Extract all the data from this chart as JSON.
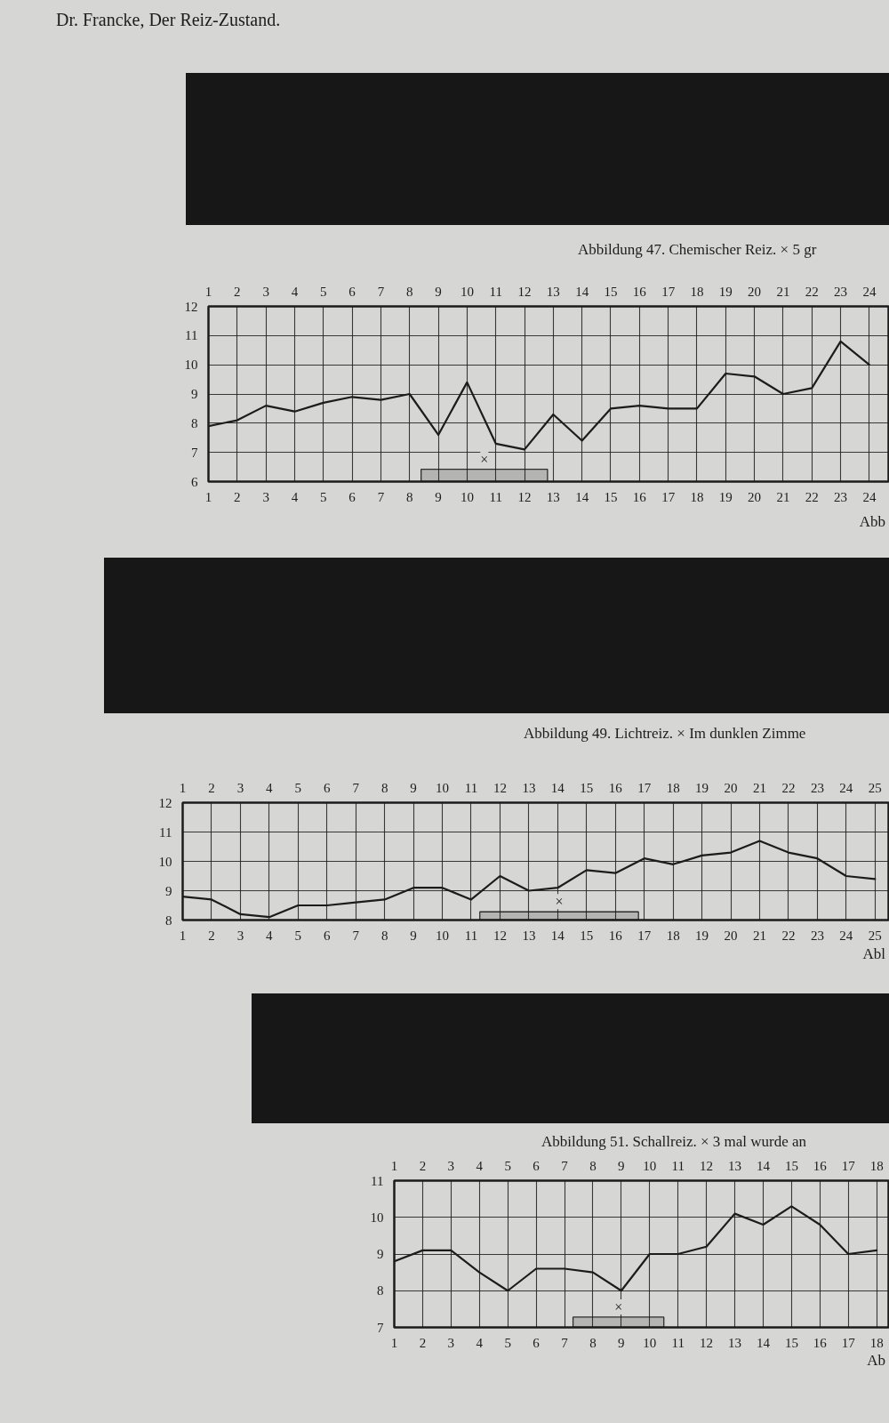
{
  "chart_data": [
    {
      "type": "line",
      "annotations": [
        "Dr. Francke, Der Reiz-Zustand.",
        "Abbildung 47. Chemischer Reiz. × 5 gr",
        "Abb"
      ],
      "x": [
        1,
        2,
        3,
        4,
        5,
        6,
        7,
        8,
        9,
        10,
        11,
        12,
        13,
        14,
        15,
        16,
        17,
        18,
        19,
        20,
        21,
        22,
        23,
        24
      ],
      "series": [
        {
          "color": "#1c1c1c",
          "values": [
            7.9,
            8.1,
            8.6,
            8.4,
            8.7,
            8.9,
            8.8,
            9.0,
            7.6,
            9.4,
            7.3,
            7.1,
            8.3,
            7.4,
            8.5,
            8.6,
            8.5,
            8.5,
            9.7,
            9.6,
            9.0,
            9.2,
            10.8,
            10.0
          ]
        }
      ],
      "xlim": [
        1,
        24.7
      ],
      "xticks": [
        1,
        2,
        3,
        4,
        5,
        6,
        7,
        8,
        9,
        10,
        11,
        12,
        13,
        14,
        15,
        16,
        17,
        18,
        19,
        20,
        21,
        22,
        23,
        24
      ],
      "x2lim": [
        1,
        24.7
      ],
      "x2ticks": [
        1,
        2,
        3,
        4,
        5,
        6,
        7,
        8,
        9,
        10,
        11,
        12,
        13,
        14,
        15,
        16,
        17,
        18,
        19,
        20,
        21,
        22,
        23,
        24
      ],
      "ylim": [
        6,
        12
      ],
      "yticks": [
        6,
        7,
        8,
        9,
        10,
        11,
        12
      ],
      "grid": true,
      "bands": [
        {
          "axis": "x",
          "from": 8.4,
          "to": 12.8,
          "label": "×"
        }
      ]
    },
    {
      "type": "line",
      "annotations": [
        "Abbildung 49. Lichtreiz. × Im dunklen Zimme",
        "Abl"
      ],
      "x": [
        1,
        2,
        3,
        4,
        5,
        6,
        7,
        8,
        9,
        10,
        11,
        12,
        13,
        14,
        15,
        16,
        17,
        18,
        19,
        20,
        21,
        22,
        23,
        24,
        25
      ],
      "series": [
        {
          "color": "#1c1c1c",
          "values": [
            8.8,
            8.7,
            8.2,
            8.1,
            8.5,
            8.5,
            8.6,
            8.7,
            9.1,
            9.1,
            8.7,
            9.5,
            9.0,
            9.1,
            9.7,
            9.6,
            10.1,
            9.9,
            10.2,
            10.3,
            10.7,
            10.3,
            10.1,
            9.5,
            9.4
          ]
        }
      ],
      "xlim": [
        1,
        25.5
      ],
      "xticks": [
        1,
        2,
        3,
        4,
        5,
        6,
        7,
        8,
        9,
        10,
        11,
        12,
        13,
        14,
        15,
        16,
        17,
        18,
        19,
        20,
        21,
        22,
        23,
        24,
        25
      ],
      "x2lim": [
        1,
        25.5
      ],
      "x2ticks": [
        1,
        2,
        3,
        4,
        5,
        6,
        7,
        8,
        9,
        10,
        11,
        12,
        13,
        14,
        15,
        16,
        17,
        18,
        19,
        20,
        21,
        22,
        23,
        24,
        25
      ],
      "ylim": [
        8,
        12
      ],
      "yticks": [
        8,
        9,
        10,
        11,
        12
      ],
      "grid": true,
      "bands": [
        {
          "axis": "x",
          "from": 11.3,
          "to": 16.8,
          "label": "×"
        }
      ]
    },
    {
      "type": "line",
      "annotations": [
        "Abbildung 51. Schallreiz. × 3 mal wurde an",
        "Ab"
      ],
      "x": [
        1,
        2,
        3,
        4,
        5,
        6,
        7,
        8,
        9,
        10,
        11,
        12,
        13,
        14,
        15,
        16,
        17,
        18
      ],
      "series": [
        {
          "color": "#1c1c1c",
          "values": [
            8.8,
            9.1,
            9.1,
            8.5,
            8.0,
            8.6,
            8.6,
            8.5,
            8.0,
            9.0,
            9.0,
            9.2,
            10.1,
            9.8,
            10.3,
            9.8,
            9.0,
            9.1
          ]
        }
      ],
      "xlim": [
        1,
        18.45
      ],
      "xticks": [
        1,
        2,
        3,
        4,
        5,
        6,
        7,
        8,
        9,
        10,
        11,
        12,
        13,
        14,
        15,
        16,
        17,
        18
      ],
      "x2lim": [
        1,
        18.45
      ],
      "x2ticks": [
        1,
        2,
        3,
        4,
        5,
        6,
        7,
        8,
        9,
        10,
        11,
        12,
        13,
        14,
        15,
        16,
        17,
        18
      ],
      "ylim": [
        7,
        11
      ],
      "yticks": [
        7,
        8,
        9,
        10,
        11
      ],
      "grid": true,
      "bands": [
        {
          "axis": "x",
          "from": 7.3,
          "to": 10.5,
          "label": "×"
        }
      ]
    }
  ]
}
